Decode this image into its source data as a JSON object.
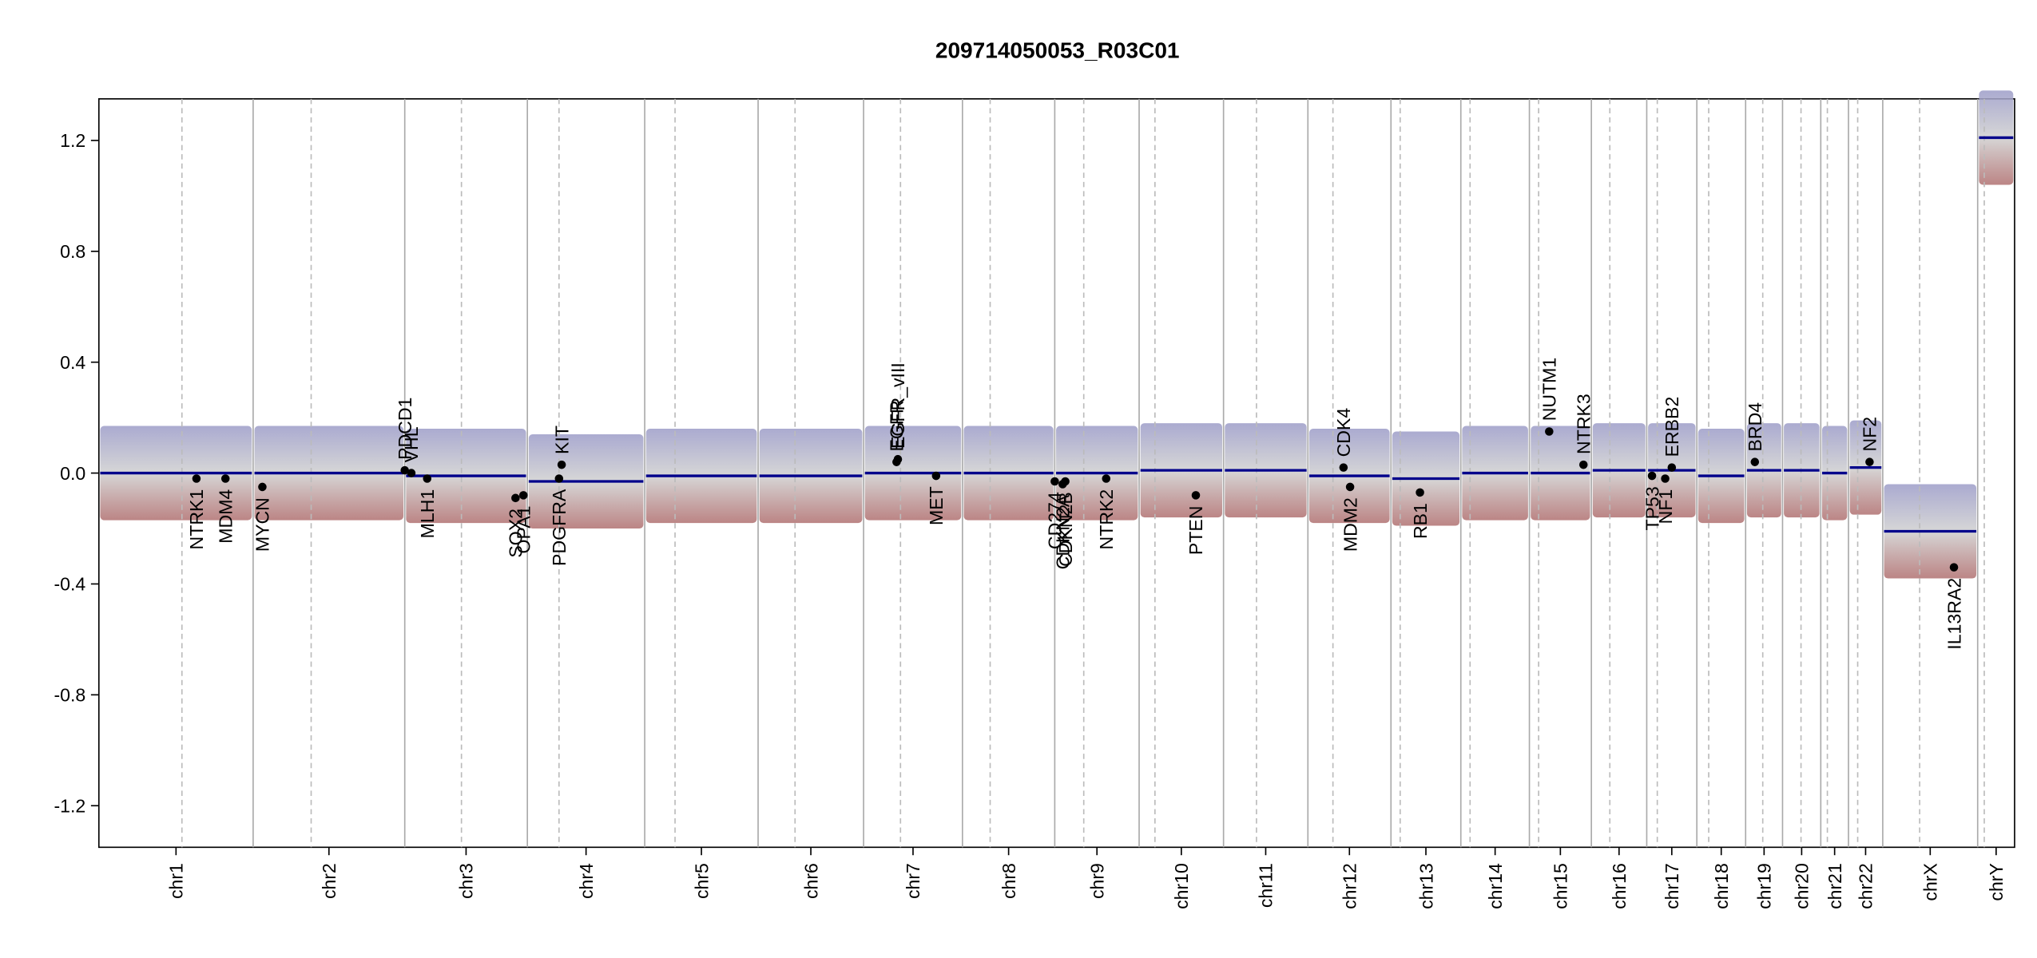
{
  "chart_data": {
    "type": "cnv",
    "title": "209714050053_R03C01",
    "ylim": [
      -1.35,
      1.35
    ],
    "yticks": [
      {
        "value": -1.2,
        "label": "-1.2"
      },
      {
        "value": -0.8,
        "label": "-0.8"
      },
      {
        "value": -0.4,
        "label": "-0.4"
      },
      {
        "value": 0,
        "label": "0.0"
      },
      {
        "value": 0.4,
        "label": "0.4"
      },
      {
        "value": 0.8,
        "label": "0.8"
      },
      {
        "value": 1.2,
        "label": "1.2"
      }
    ],
    "xlim": [
      0,
      1453
    ],
    "chromosomes": [
      "chr1",
      "chr2",
      "chr3",
      "chr4",
      "chr5",
      "chr6",
      "chr7",
      "chr8",
      "chr9",
      "chr10",
      "chr11",
      "chr12",
      "chr13",
      "chr14",
      "chr15",
      "chr16",
      "chr17",
      "chr18",
      "chr19",
      "chr20",
      "chr21",
      "chr22",
      "chrX",
      "chrY"
    ],
    "boundaries": [
      0,
      117,
      232,
      325,
      414,
      500,
      580,
      655,
      725,
      789,
      853,
      917,
      980,
      1033,
      1085,
      1132,
      1174,
      1212,
      1249,
      1277,
      1306,
      1327,
      1353,
      1425,
      1453
    ],
    "centromeres": [
      63,
      161,
      275,
      349,
      437,
      528,
      608,
      676,
      747,
      801,
      878,
      936,
      987,
      1040,
      1092,
      1146,
      1182,
      1221,
      1262,
      1291,
      1311,
      1334,
      1381,
      1430
    ],
    "segment_color": "#00008b",
    "segments": [
      0.0,
      0.0,
      -0.01,
      -0.03,
      -0.01,
      -0.01,
      0.0,
      0.0,
      0.0,
      0.01,
      0.01,
      -0.01,
      -0.02,
      0.0,
      0.0,
      0.01,
      0.01,
      -0.01,
      0.01,
      0.01,
      0.0,
      0.02,
      -0.21,
      1.21
    ],
    "genes": [
      {
        "name": "NTRK1",
        "x": 74,
        "value": -0.02,
        "side": "below"
      },
      {
        "name": "MDM4",
        "x": 96,
        "value": -0.02,
        "side": "below"
      },
      {
        "name": "MYCN",
        "x": 124,
        "value": -0.05,
        "side": "below"
      },
      {
        "name": "PDCD1",
        "x": 232,
        "value": 0.01,
        "side": "above"
      },
      {
        "name": "VHL",
        "x": 237,
        "value": 0.0,
        "side": "above"
      },
      {
        "name": "MLH1",
        "x": 249,
        "value": -0.02,
        "side": "below"
      },
      {
        "name": "SOX2",
        "x": 316,
        "value": -0.09,
        "side": "below"
      },
      {
        "name": "OPA1",
        "x": 322,
        "value": -0.08,
        "side": "below"
      },
      {
        "name": "PDGFRA",
        "x": 349,
        "value": -0.02,
        "side": "below"
      },
      {
        "name": "KIT",
        "x": 351,
        "value": 0.03,
        "side": "above"
      },
      {
        "name": "EGFR",
        "x": 605,
        "value": 0.04,
        "side": "above"
      },
      {
        "name": "EGFR_vIII",
        "x": 606,
        "value": 0.05,
        "side": "above"
      },
      {
        "name": "MET",
        "x": 635,
        "value": -0.01,
        "side": "below"
      },
      {
        "name": "CD274",
        "x": 725,
        "value": -0.03,
        "side": "below"
      },
      {
        "name": "CDKN2A",
        "x": 731,
        "value": -0.04,
        "side": "below"
      },
      {
        "name": "CDKN2B",
        "x": 733,
        "value": -0.03,
        "side": "below"
      },
      {
        "name": "NTRK2",
        "x": 764,
        "value": -0.02,
        "side": "below"
      },
      {
        "name": "PTEN",
        "x": 832,
        "value": -0.08,
        "side": "below"
      },
      {
        "name": "CDK4",
        "x": 944,
        "value": 0.02,
        "side": "above"
      },
      {
        "name": "MDM2",
        "x": 949,
        "value": -0.05,
        "side": "below"
      },
      {
        "name": "RB1",
        "x": 1002,
        "value": -0.07,
        "side": "below"
      },
      {
        "name": "NUTM1",
        "x": 1100,
        "value": 0.15,
        "side": "above"
      },
      {
        "name": "NTRK3",
        "x": 1126,
        "value": 0.03,
        "side": "above"
      },
      {
        "name": "TP53",
        "x": 1178,
        "value": -0.01,
        "side": "below"
      },
      {
        "name": "NF1",
        "x": 1188,
        "value": -0.02,
        "side": "below"
      },
      {
        "name": "ERBB2",
        "x": 1193,
        "value": 0.02,
        "side": "above"
      },
      {
        "name": "BRD4",
        "x": 1256,
        "value": 0.04,
        "side": "above"
      },
      {
        "name": "NF2",
        "x": 1343,
        "value": 0.04,
        "side": "above"
      },
      {
        "name": "IL13RA2",
        "x": 1407,
        "value": -0.34,
        "side": "below"
      }
    ]
  }
}
